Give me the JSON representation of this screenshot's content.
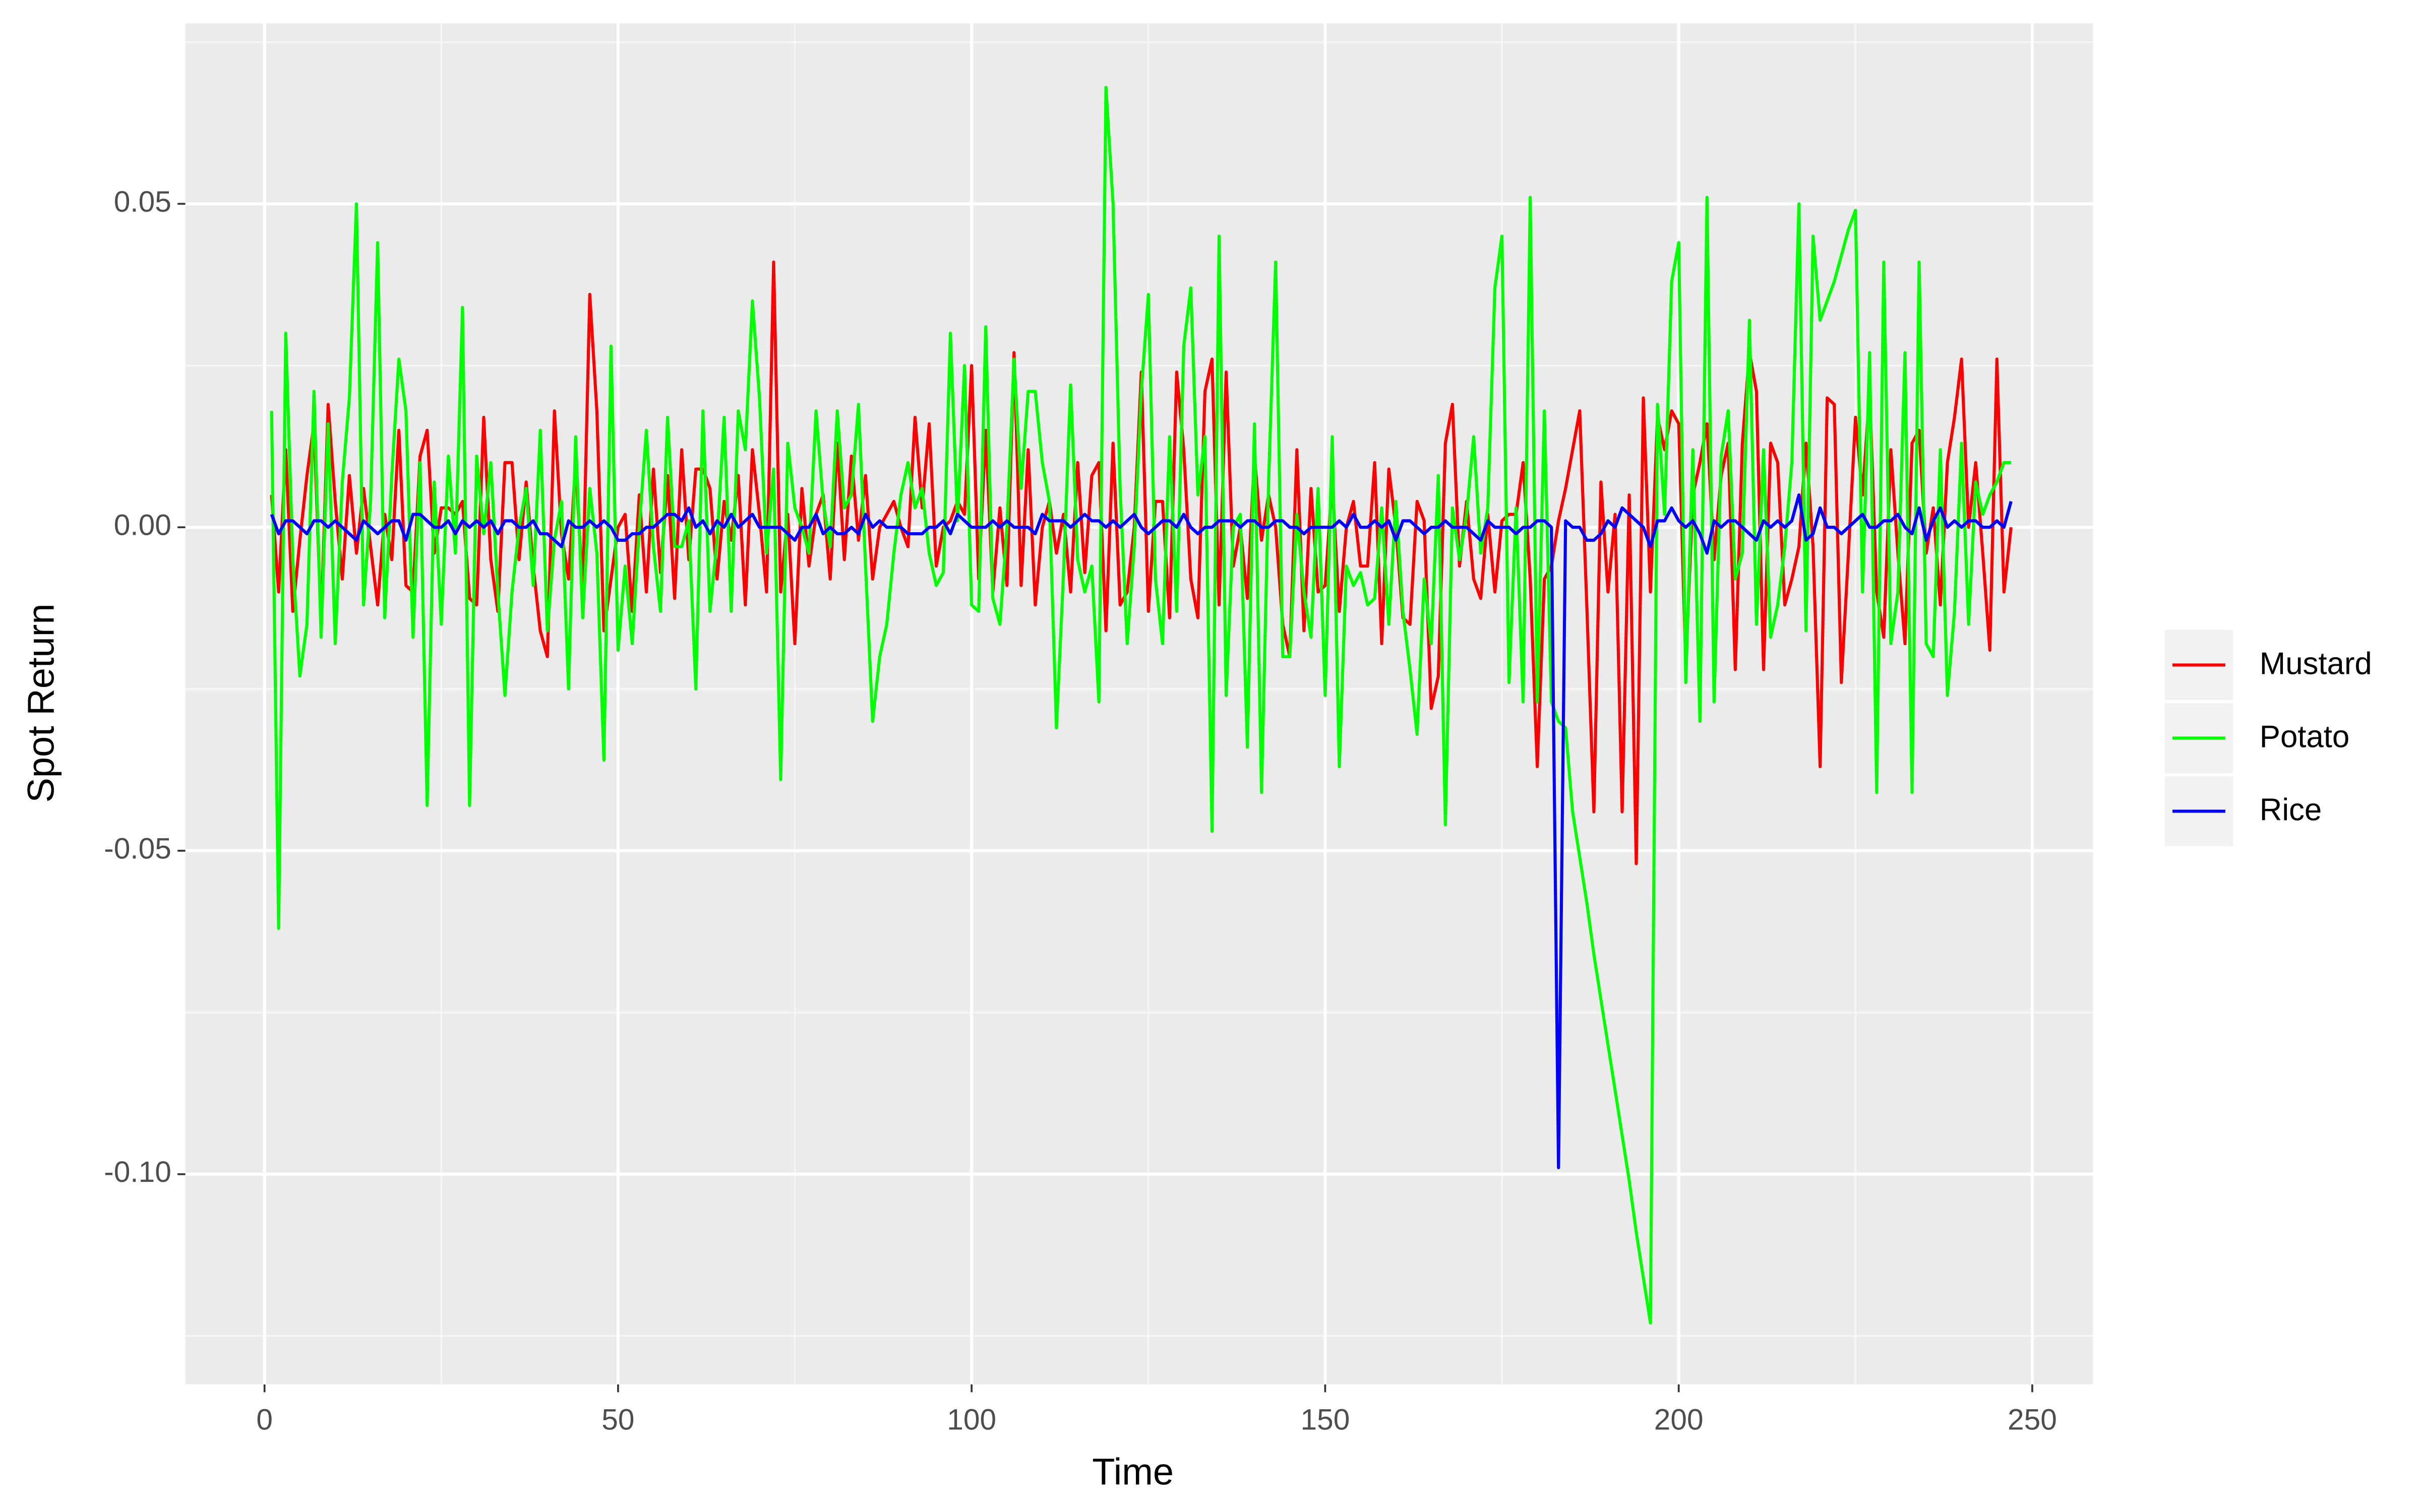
{
  "chart_data": {
    "type": "line",
    "x_label": "Time",
    "y_label": "Spot Return",
    "x": [
      1,
      2,
      3,
      4,
      5,
      6,
      7,
      8,
      9,
      10,
      11,
      12,
      13,
      14,
      15,
      16,
      17,
      18,
      19,
      20,
      21,
      22,
      23,
      24,
      25,
      26,
      27,
      28,
      29,
      30,
      31,
      32,
      33,
      34,
      35,
      36,
      37,
      38,
      39,
      40,
      41,
      42,
      43,
      44,
      45,
      46,
      47,
      48,
      49,
      50,
      51,
      52,
      53,
      54,
      55,
      56,
      57,
      58,
      59,
      60,
      61,
      62,
      63,
      64,
      65,
      66,
      67,
      68,
      69,
      70,
      71,
      72,
      73,
      74,
      75,
      76,
      77,
      78,
      79,
      80,
      81,
      82,
      83,
      84,
      85,
      86,
      87,
      88,
      89,
      90,
      91,
      92,
      93,
      94,
      95,
      96,
      97,
      98,
      99,
      100,
      101,
      102,
      103,
      104,
      105,
      106,
      107,
      108,
      109,
      110,
      111,
      112,
      113,
      114,
      115,
      116,
      117,
      118,
      119,
      120,
      121,
      122,
      123,
      124,
      125,
      126,
      127,
      128,
      129,
      130,
      131,
      132,
      133,
      134,
      135,
      136,
      137,
      138,
      139,
      140,
      141,
      142,
      143,
      144,
      145,
      146,
      147,
      148,
      149,
      150,
      151,
      152,
      153,
      154,
      155,
      156,
      157,
      158,
      159,
      160,
      161,
      162,
      163,
      164,
      165,
      166,
      167,
      168,
      169,
      170,
      171,
      172,
      173,
      174,
      175,
      176,
      177,
      178,
      179,
      180,
      181,
      182,
      183,
      184,
      185,
      186,
      187,
      188,
      189,
      190,
      191,
      192,
      193,
      194,
      195,
      196,
      197,
      198,
      199,
      200,
      201,
      202,
      203,
      204,
      205,
      206,
      207,
      208,
      209,
      210,
      211,
      212,
      213,
      214,
      215,
      216,
      217,
      218,
      219,
      220,
      221,
      222,
      223,
      224,
      225,
      226,
      227,
      228,
      229,
      230,
      231,
      232,
      233,
      234,
      235,
      236,
      237,
      238,
      239,
      240,
      241,
      242,
      243,
      244,
      245,
      246,
      247
    ],
    "series": [
      {
        "name": "Mustard",
        "color": "#ff0000",
        "values": [
          0.005,
          -0.01,
          0.012,
          -0.013,
          -0.002,
          0.008,
          0.016,
          -0.015,
          0.019,
          0.004,
          -0.008,
          0.008,
          -0.004,
          0.006,
          -0.003,
          -0.012,
          0.002,
          -0.005,
          0.015,
          -0.009,
          -0.01,
          0.011,
          0.015,
          -0.004,
          0.003,
          0.003,
          0.002,
          0.004,
          -0.011,
          -0.012,
          0.017,
          -0.005,
          -0.013,
          0.01,
          0.01,
          -0.005,
          0.007,
          -0.006,
          -0.016,
          -0.02,
          0.018,
          -0.001,
          -0.008,
          0.01,
          -0.01,
          0.036,
          0.018,
          -0.016,
          -0.008,
          0.0,
          0.002,
          -0.013,
          0.005,
          -0.01,
          0.009,
          -0.007,
          0.008,
          -0.011,
          0.012,
          -0.005,
          0.009,
          0.009,
          0.006,
          -0.008,
          0.004,
          -0.002,
          0.008,
          -0.012,
          0.012,
          0.002,
          -0.01,
          0.041,
          -0.01,
          0.002,
          -0.018,
          0.006,
          -0.006,
          0.002,
          0.005,
          -0.008,
          0.013,
          -0.005,
          0.011,
          -0.002,
          0.008,
          -0.008,
          0.0,
          0.002,
          0.004,
          0.0,
          -0.003,
          0.017,
          0.003,
          0.016,
          -0.006,
          0.0,
          0.001,
          0.004,
          0.002,
          0.025,
          -0.008,
          0.015,
          -0.01,
          0.003,
          -0.009,
          0.027,
          -0.009,
          0.012,
          -0.012,
          0.0,
          0.004,
          -0.004,
          0.002,
          -0.01,
          0.01,
          -0.007,
          0.008,
          0.01,
          -0.016,
          0.013,
          -0.012,
          -0.01,
          0.0,
          0.024,
          -0.013,
          0.004,
          0.004,
          -0.014,
          0.024,
          0.012,
          -0.008,
          -0.014,
          0.021,
          0.026,
          -0.012,
          0.024,
          -0.006,
          0.0,
          -0.011,
          0.011,
          -0.002,
          0.005,
          0.0,
          -0.015,
          -0.02,
          0.012,
          -0.016,
          0.006,
          -0.01,
          -0.009,
          0.007,
          -0.013,
          0.0,
          0.004,
          -0.006,
          -0.006,
          0.01,
          -0.018,
          0.009,
          0.0,
          -0.014,
          -0.015,
          0.004,
          0.001,
          -0.028,
          -0.023,
          0.013,
          0.019,
          -0.006,
          0.004,
          -0.008,
          -0.011,
          0.002,
          -0.01,
          0.001,
          0.002,
          0.002,
          0.01,
          -0.008,
          -0.037,
          -0.008,
          -0.006,
          0.001,
          0.006,
          0.012,
          0.018,
          -0.012,
          -0.044,
          0.007,
          -0.01,
          0.002,
          -0.044,
          0.005,
          -0.052,
          0.02,
          -0.01,
          0.017,
          0.012,
          0.018,
          0.016,
          -0.021,
          0.005,
          0.01,
          0.016,
          -0.005,
          0.008,
          0.013,
          -0.022,
          0.013,
          0.027,
          0.021,
          -0.022,
          0.013,
          0.01,
          -0.012,
          -0.008,
          -0.003,
          0.013,
          -0.003,
          -0.037,
          0.02,
          0.019,
          -0.024,
          -0.004,
          0.017,
          0.005,
          0.021,
          -0.01,
          -0.017,
          0.012,
          -0.004,
          -0.018,
          0.013,
          0.015,
          -0.004,
          0.003,
          -0.012,
          0.01,
          0.017,
          0.026,
          0.0,
          0.01,
          -0.004,
          -0.019,
          0.026,
          -0.01,
          0.0
        ]
      },
      {
        "name": "Potato",
        "color": "#00ff00",
        "values": [
          0.018,
          -0.062,
          0.03,
          -0.005,
          -0.023,
          -0.015,
          0.021,
          -0.017,
          0.016,
          -0.018,
          0.007,
          0.02,
          0.05,
          -0.012,
          0.004,
          0.044,
          -0.014,
          0.008,
          0.026,
          0.018,
          -0.017,
          0.01,
          -0.043,
          0.007,
          -0.015,
          0.011,
          -0.004,
          0.034,
          -0.043,
          0.011,
          -0.001,
          0.01,
          -0.01,
          -0.026,
          -0.01,
          0.0,
          0.006,
          -0.009,
          0.015,
          -0.016,
          -0.002,
          0.004,
          -0.025,
          0.014,
          -0.014,
          0.006,
          -0.004,
          -0.036,
          0.028,
          -0.019,
          -0.006,
          -0.018,
          0.0,
          0.015,
          -0.003,
          -0.013,
          0.017,
          -0.003,
          -0.003,
          0.001,
          -0.025,
          0.018,
          -0.013,
          -0.002,
          0.017,
          -0.013,
          0.018,
          0.012,
          0.035,
          0.02,
          -0.004,
          0.009,
          -0.039,
          0.013,
          0.003,
          0.0,
          -0.004,
          0.018,
          0.004,
          -0.003,
          0.018,
          0.003,
          0.005,
          0.019,
          -0.006,
          -0.03,
          -0.02,
          -0.015,
          -0.004,
          0.005,
          0.01,
          0.003,
          0.006,
          -0.004,
          -0.009,
          -0.007,
          0.03,
          0.001,
          0.025,
          -0.012,
          -0.013,
          0.031,
          -0.011,
          -0.015,
          0.0,
          0.026,
          0.006,
          0.021,
          0.021,
          0.01,
          0.004,
          -0.031,
          -0.007,
          0.022,
          -0.005,
          -0.01,
          -0.006,
          -0.027,
          0.068,
          0.05,
          0.006,
          -0.018,
          -0.003,
          0.021,
          0.036,
          -0.008,
          -0.018,
          0.014,
          -0.013,
          0.028,
          0.037,
          0.005,
          0.014,
          -0.047,
          0.045,
          -0.026,
          0.0,
          0.002,
          -0.034,
          0.016,
          -0.041,
          0.007,
          0.041,
          -0.02,
          -0.02,
          0.002,
          -0.01,
          -0.017,
          0.006,
          -0.026,
          0.014,
          -0.037,
          -0.006,
          -0.009,
          -0.007,
          -0.012,
          -0.011,
          0.003,
          -0.015,
          0.004,
          -0.013,
          -0.022,
          -0.032,
          -0.008,
          -0.018,
          0.008,
          -0.046,
          0.003,
          -0.005,
          0.002,
          0.014,
          -0.004,
          0.003,
          0.037,
          0.045,
          -0.024,
          0.003,
          -0.027,
          0.051,
          -0.027,
          0.018,
          -0.027,
          -0.03,
          -0.031,
          -0.044,
          -0.051,
          -0.058,
          -0.066,
          -0.073,
          -0.08,
          -0.087,
          -0.094,
          -0.101,
          -0.109,
          -0.116,
          -0.123,
          0.019,
          0.002,
          0.038,
          0.044,
          -0.024,
          0.012,
          -0.03,
          0.051,
          -0.027,
          0.011,
          0.018,
          -0.008,
          -0.004,
          0.032,
          -0.015,
          0.012,
          -0.017,
          -0.012,
          -0.003,
          0.01,
          0.05,
          -0.016,
          0.045,
          0.032,
          0.035,
          0.038,
          0.042,
          0.046,
          0.049,
          -0.01,
          0.027,
          -0.041,
          0.041,
          -0.018,
          -0.01,
          0.027,
          -0.041,
          0.041,
          -0.018,
          -0.02,
          0.012,
          -0.026,
          -0.013,
          0.013,
          -0.015,
          0.007,
          0.002,
          0.005,
          0.007,
          0.01,
          0.01
        ]
      },
      {
        "name": "Rice",
        "color": "#0000ff",
        "values": [
          0.002,
          -0.001,
          0.001,
          0.001,
          0.0,
          -0.001,
          0.001,
          0.001,
          0.0,
          0.001,
          0.0,
          -0.001,
          -0.002,
          0.001,
          0.0,
          -0.001,
          0.0,
          0.001,
          0.001,
          -0.002,
          0.002,
          0.002,
          0.001,
          0.0,
          0.0,
          0.001,
          -0.001,
          0.001,
          0.0,
          0.001,
          0.0,
          0.001,
          -0.001,
          0.001,
          0.001,
          0.0,
          0.0,
          0.001,
          -0.001,
          -0.001,
          -0.002,
          -0.003,
          0.001,
          0.0,
          0.0,
          0.001,
          0.0,
          0.001,
          0.0,
          -0.002,
          -0.002,
          -0.001,
          -0.001,
          0.0,
          0.0,
          0.001,
          0.002,
          0.002,
          0.001,
          0.003,
          0.0,
          0.001,
          -0.001,
          0.001,
          0.0,
          0.002,
          0.0,
          0.001,
          0.002,
          0.0,
          0.0,
          0.0,
          0.0,
          -0.001,
          -0.002,
          0.0,
          0.0,
          0.002,
          -0.001,
          0.0,
          -0.001,
          -0.001,
          0.0,
          -0.001,
          0.002,
          0.0,
          0.001,
          0.0,
          0.0,
          0.0,
          -0.001,
          -0.001,
          -0.001,
          0.0,
          0.0,
          0.001,
          -0.001,
          0.002,
          0.001,
          0.0,
          0.0,
          0.0,
          0.001,
          0.0,
          0.001,
          0.0,
          0.0,
          0.0,
          -0.001,
          0.002,
          0.001,
          0.001,
          0.001,
          0.0,
          0.001,
          0.002,
          0.001,
          0.001,
          0.0,
          0.001,
          0.0,
          0.001,
          0.002,
          0.0,
          -0.001,
          0.0,
          0.001,
          0.001,
          0.0,
          0.002,
          0.0,
          -0.001,
          0.0,
          0.0,
          0.001,
          0.001,
          0.001,
          0.0,
          0.001,
          0.001,
          0.0,
          0.0,
          0.001,
          0.001,
          0.0,
          0.0,
          -0.001,
          0.0,
          0.0,
          0.0,
          0.0,
          0.001,
          0.0,
          0.002,
          0.0,
          0.0,
          0.001,
          0.0,
          0.001,
          -0.002,
          0.001,
          0.001,
          0.0,
          -0.001,
          0.0,
          0.0,
          0.001,
          0.0,
          0.0,
          0.0,
          -0.001,
          -0.002,
          0.001,
          0.0,
          0.0,
          0.0,
          -0.001,
          0.0,
          0.0,
          0.001,
          0.001,
          0.0,
          -0.099,
          0.001,
          0.0,
          0.0,
          -0.002,
          -0.002,
          -0.001,
          0.001,
          0.0,
          0.003,
          0.002,
          0.001,
          0.0,
          -0.003,
          0.001,
          0.001,
          0.003,
          0.001,
          0.0,
          0.001,
          -0.001,
          -0.004,
          0.001,
          0.0,
          0.001,
          0.001,
          0.0,
          -0.001,
          -0.002,
          0.001,
          0.0,
          0.001,
          0.0,
          0.001,
          0.005,
          -0.002,
          -0.001,
          0.003,
          0.0,
          0.0,
          -0.001,
          0.0,
          0.001,
          0.002,
          0.0,
          0.0,
          0.001,
          0.001,
          0.002,
          0.0,
          -0.001,
          0.003,
          -0.002,
          0.001,
          0.003,
          0.0,
          0.001,
          0.0,
          0.001,
          0.001,
          0.0,
          0.0,
          0.001,
          0.0,
          0.004
        ]
      }
    ],
    "xlim": [
      -11.2,
      258.6
    ],
    "ylim": [
      -0.1325,
      0.0779
    ],
    "xticks": [
      0,
      50,
      100,
      150,
      200,
      250
    ],
    "yticks": [
      {
        "value": -0.1,
        "label": "-0.10"
      },
      -0.05,
      {
        "value": 0,
        "label": "0.00"
      },
      0.05
    ],
    "grid": true,
    "legend": "right"
  }
}
